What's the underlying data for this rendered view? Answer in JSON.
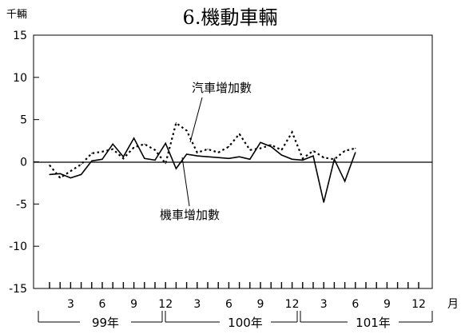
{
  "chart_data": {
    "type": "line",
    "title": "6.機動車輛",
    "ylabel": "千輛",
    "xlabel": "月",
    "ylim": [
      -15,
      15
    ],
    "yticks": [
      15,
      10,
      5,
      0,
      -5,
      -10,
      -15
    ],
    "month_ticks": [
      "3",
      "6",
      "9",
      "12",
      "3",
      "6",
      "9",
      "12",
      "3",
      "6",
      "9",
      "12"
    ],
    "year_labels": [
      "99年",
      "100年",
      "101年"
    ],
    "x": [
      "99/1",
      "99/2",
      "99/3",
      "99/4",
      "99/5",
      "99/6",
      "99/7",
      "99/8",
      "99/9",
      "99/10",
      "99/11",
      "99/12",
      "100/1",
      "100/2",
      "100/3",
      "100/4",
      "100/5",
      "100/6",
      "100/7",
      "100/8",
      "100/9",
      "100/10",
      "100/11",
      "100/12",
      "101/1",
      "101/2",
      "101/3",
      "101/4",
      "101/5",
      "101/6"
    ],
    "series": [
      {
        "name": "汽車增加數",
        "style": "dotted",
        "values": [
          -0.4,
          -1.9,
          -1.1,
          -0.3,
          1.0,
          1.2,
          1.5,
          0.4,
          1.7,
          2.1,
          1.4,
          -0.2,
          4.6,
          3.7,
          1.1,
          1.5,
          1.1,
          1.8,
          3.3,
          1.4,
          1.6,
          2.0,
          1.4,
          3.5,
          0.4,
          1.3,
          0.5,
          0.3,
          1.3,
          1.6
        ]
      },
      {
        "name": "機車增加數",
        "style": "solid",
        "values": [
          -1.5,
          -1.4,
          -1.9,
          -1.5,
          0.1,
          0.3,
          2.1,
          0.6,
          2.8,
          0.4,
          0.2,
          2.2,
          -0.8,
          0.9,
          0.7,
          0.6,
          0.5,
          0.4,
          0.6,
          0.3,
          2.3,
          1.8,
          0.8,
          0.3,
          0.2,
          0.7,
          -4.8,
          0.3,
          -2.3,
          1.1
        ]
      }
    ]
  }
}
